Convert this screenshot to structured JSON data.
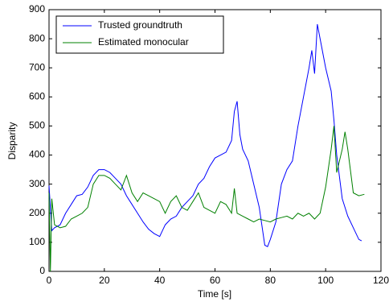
{
  "chart_data": {
    "type": "line",
    "xlabel": "Time [s]",
    "ylabel": "Disparity",
    "xlim": [
      0,
      120
    ],
    "xticks": [
      0,
      20,
      40,
      60,
      80,
      100,
      120
    ],
    "ylim": [
      0,
      900
    ],
    "yticks": [
      0,
      100,
      200,
      300,
      400,
      500,
      600,
      700,
      800,
      900
    ],
    "legend": "top-left",
    "series": [
      {
        "name": "Trusted groundtruth",
        "color": "#0000ff",
        "x": [
          0,
          1,
          2,
          4,
          6,
          8,
          10,
          12,
          14,
          16,
          18,
          20,
          22,
          24,
          26,
          28,
          30,
          32,
          34,
          36,
          38,
          40,
          41,
          42,
          44,
          46,
          48,
          50,
          52,
          54,
          56,
          58,
          60,
          62,
          64,
          66,
          67,
          68,
          69,
          70,
          72,
          74,
          76,
          78,
          79,
          80,
          82,
          84,
          86,
          88,
          90,
          92,
          94,
          95,
          96,
          97,
          98,
          100,
          102,
          103,
          104,
          106,
          108,
          110,
          112,
          113
        ],
        "values": [
          295,
          140,
          150,
          160,
          200,
          230,
          260,
          265,
          290,
          330,
          350,
          350,
          340,
          320,
          300,
          260,
          230,
          200,
          170,
          145,
          130,
          120,
          140,
          160,
          180,
          190,
          220,
          240,
          260,
          300,
          320,
          360,
          390,
          400,
          410,
          450,
          550,
          585,
          470,
          420,
          380,
          300,
          220,
          90,
          85,
          110,
          170,
          300,
          350,
          380,
          500,
          600,
          700,
          760,
          680,
          850,
          800,
          700,
          620,
          520,
          400,
          250,
          190,
          150,
          110,
          105
        ]
      },
      {
        "name": "Estimated monocular",
        "color": "#008000",
        "x": [
          0,
          0.5,
          1,
          2,
          4,
          6,
          8,
          10,
          12,
          14,
          16,
          18,
          20,
          22,
          24,
          26,
          28,
          30,
          32,
          34,
          36,
          38,
          40,
          42,
          44,
          46,
          48,
          50,
          52,
          54,
          56,
          58,
          60,
          62,
          64,
          66,
          67,
          68,
          70,
          72,
          74,
          76,
          78,
          80,
          82,
          84,
          86,
          88,
          90,
          92,
          94,
          96,
          98,
          100,
          102,
          103,
          104,
          106,
          107,
          108,
          110,
          112,
          114
        ],
        "values": [
          270,
          0,
          250,
          160,
          150,
          155,
          180,
          190,
          200,
          220,
          300,
          330,
          330,
          320,
          300,
          280,
          330,
          270,
          240,
          270,
          260,
          250,
          240,
          200,
          240,
          260,
          220,
          210,
          240,
          270,
          220,
          210,
          200,
          240,
          230,
          200,
          285,
          200,
          190,
          180,
          170,
          180,
          175,
          170,
          180,
          185,
          190,
          180,
          200,
          190,
          200,
          180,
          200,
          290,
          420,
          500,
          340,
          420,
          480,
          420,
          270,
          260,
          265
        ]
      }
    ]
  }
}
